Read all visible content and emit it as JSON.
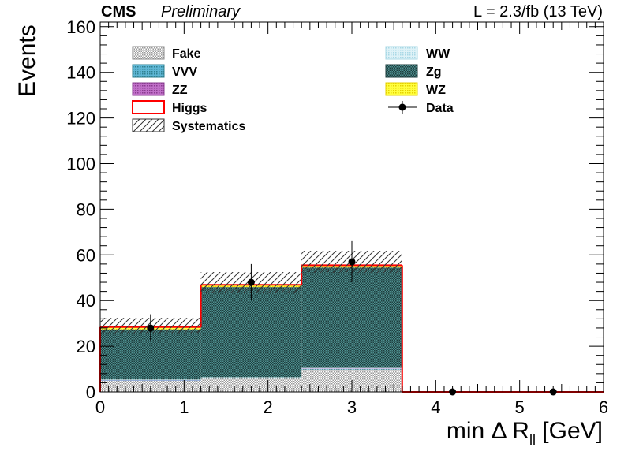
{
  "header": {
    "experiment": "CMS",
    "status": "Preliminary",
    "lumi": "L = 2.3/fb (13 TeV)"
  },
  "chart_data": {
    "type": "bar",
    "stacked": true,
    "x_bin_edges": [
      0,
      1.2,
      2.4,
      3.6,
      4.8,
      6.0
    ],
    "xlabel": "min Δ R",
    "xlabel_sub": "ll",
    "xlabel_unit": " [GeV]",
    "ylabel": "Events",
    "xlim": [
      0,
      6
    ],
    "ylim": [
      0,
      162
    ],
    "x_ticks": [
      "0",
      "1",
      "2",
      "3",
      "4",
      "5",
      "6"
    ],
    "y_ticks": [
      "0",
      "20",
      "40",
      "60",
      "80",
      "100",
      "120",
      "140",
      "160"
    ],
    "grid": false,
    "legend_placement": "top",
    "series": [
      {
        "name": "Fake",
        "values": [
          5,
          6,
          10,
          0,
          0
        ],
        "color": "#c8c8c8"
      },
      {
        "name": "VVV",
        "values": [
          0.1,
          0.1,
          0.1,
          0,
          0
        ],
        "color": "#4fa6c4"
      },
      {
        "name": "ZZ",
        "values": [
          0.2,
          0.2,
          0.3,
          0,
          0
        ],
        "color": "#a64ca6"
      },
      {
        "name": "WW",
        "values": [
          0.1,
          0.1,
          0.1,
          0,
          0
        ],
        "color": "#c8e6f0"
      },
      {
        "name": "Zg",
        "values": [
          22,
          39.5,
          44,
          0,
          0
        ],
        "color": "#2e8b91"
      },
      {
        "name": "WZ",
        "values": [
          1,
          1,
          1,
          0,
          0
        ],
        "color": "#ffff00"
      },
      {
        "name": "Higgs",
        "values": [
          0,
          0,
          0,
          0,
          0
        ],
        "color": "#ff0000"
      }
    ],
    "systematics": {
      "name": "Systematics",
      "lower": [
        25.8,
        43.5,
        52.2,
        0,
        0
      ],
      "upper": [
        32.4,
        52.5,
        61.8,
        0,
        0
      ]
    },
    "data": {
      "name": "Data",
      "x": [
        0.6,
        1.8,
        3.0,
        4.2,
        5.4
      ],
      "y": [
        28,
        48,
        57,
        0,
        0
      ],
      "err": [
        6,
        8,
        9,
        0,
        0
      ]
    }
  }
}
